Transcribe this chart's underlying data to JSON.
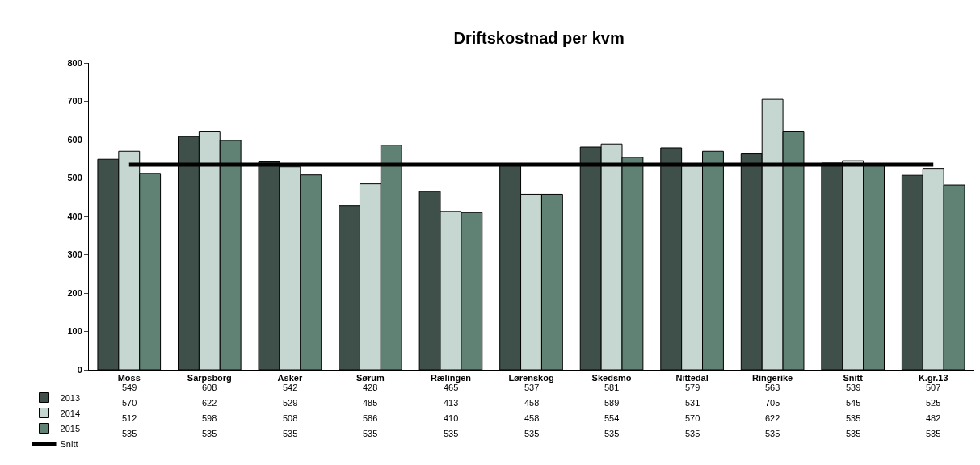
{
  "chart_data": {
    "type": "bar",
    "title": "Driftskostnad per kvm",
    "categories": [
      "Moss",
      "Sarpsborg",
      "Asker",
      "Sørum",
      "Rælingen",
      "Lørenskog",
      "Skedsmo",
      "Nittedal",
      "Ringerike",
      "Snitt",
      "K.gr.13"
    ],
    "series": [
      {
        "name": "2013",
        "color": "#3e5049",
        "values": [
          549,
          608,
          542,
          428,
          465,
          537,
          581,
          579,
          563,
          539,
          507
        ]
      },
      {
        "name": "2014",
        "color": "#c6d6d0",
        "values": [
          570,
          622,
          529,
          485,
          413,
          458,
          589,
          531,
          705,
          545,
          525
        ]
      },
      {
        "name": "2015",
        "color": "#5f8274",
        "values": [
          512,
          598,
          508,
          586,
          410,
          458,
          554,
          570,
          622,
          535,
          482
        ]
      },
      {
        "name": "Snitt",
        "type": "line",
        "color": "#000000",
        "values": [
          535,
          535,
          535,
          535,
          535,
          535,
          535,
          535,
          535,
          535,
          535
        ]
      }
    ],
    "ylim": [
      0,
      800
    ],
    "yticks": [
      0,
      100,
      200,
      300,
      400,
      500,
      600,
      700,
      800
    ],
    "grid": false,
    "legend": "bottom left",
    "data_labels": true,
    "marker": "none",
    "line_style": "solid"
  }
}
